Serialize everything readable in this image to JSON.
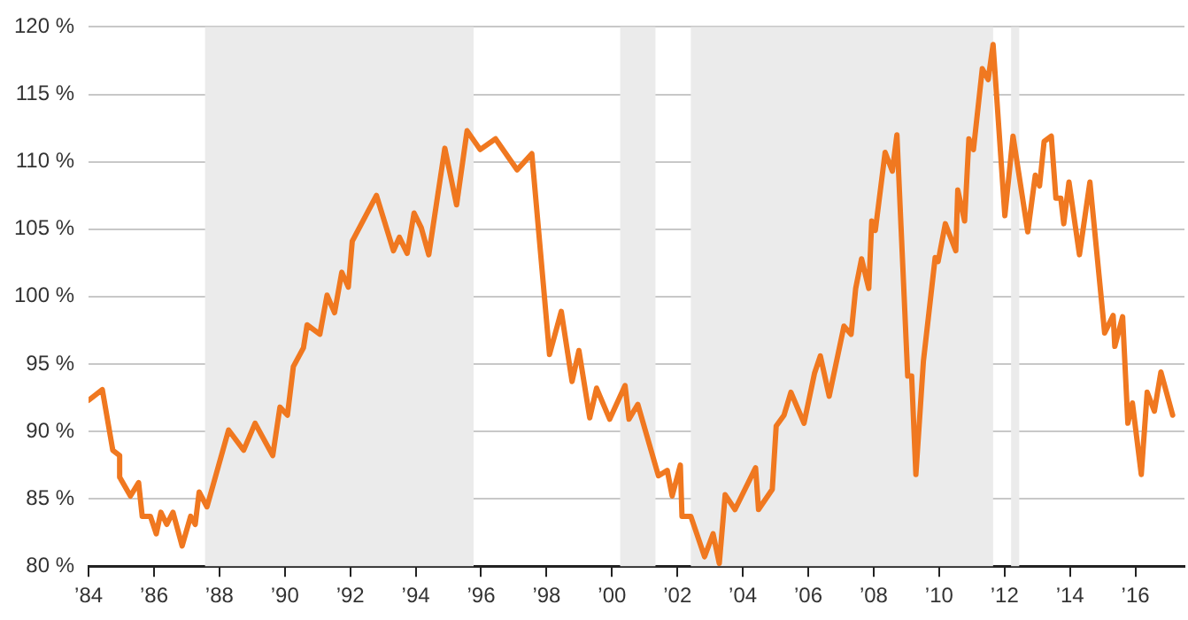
{
  "chart_data": {
    "type": "line",
    "x": [
      1984.0,
      1984.42,
      1984.74,
      1984.95,
      1984.95,
      1985.28,
      1985.53,
      1985.64,
      1985.89,
      1986.07,
      1986.21,
      1986.39,
      1986.58,
      1986.86,
      1987.12,
      1987.26,
      1987.38,
      1987.62,
      1988.28,
      1988.74,
      1989.09,
      1989.63,
      1989.85,
      1990.08,
      1990.26,
      1990.57,
      1990.68,
      1991.07,
      1991.29,
      1991.52,
      1991.74,
      1991.94,
      1992.06,
      1992.8,
      1993.32,
      1993.5,
      1993.74,
      1993.95,
      1994.17,
      1994.4,
      1994.89,
      1995.25,
      1995.57,
      1995.97,
      1996.44,
      1997.1,
      1997.55,
      1998.09,
      1998.45,
      1998.78,
      1998.99,
      1999.32,
      1999.53,
      1999.93,
      2000.4,
      2000.52,
      2000.79,
      2001.42,
      2001.69,
      2001.84,
      2002.09,
      2002.14,
      2002.41,
      2002.83,
      2003.09,
      2003.28,
      2003.46,
      2003.76,
      2004.39,
      2004.48,
      2004.9,
      2005.02,
      2005.26,
      2005.47,
      2005.87,
      2006.19,
      2006.37,
      2006.64,
      2007.09,
      2007.31,
      2007.45,
      2007.63,
      2007.85,
      2007.94,
      2008.05,
      2008.35,
      2008.57,
      2008.71,
      2009.04,
      2009.16,
      2009.29,
      2009.52,
      2009.88,
      2009.97,
      2010.19,
      2010.51,
      2010.57,
      2010.78,
      2010.91,
      2011.05,
      2011.32,
      2011.5,
      2011.65,
      2012.01,
      2012.26,
      2012.71,
      2012.94,
      2013.07,
      2013.21,
      2013.43,
      2013.57,
      2013.72,
      2013.81,
      2013.97,
      2014.29,
      2014.61,
      2015.06,
      2015.32,
      2015.37,
      2015.61,
      2015.77,
      2015.91,
      2016.18,
      2016.36,
      2016.58,
      2016.78,
      2017.14
    ],
    "series": [
      {
        "color": "#f07820",
        "values": [
          92.3,
          93.1,
          88.6,
          88.2,
          86.6,
          85.2,
          86.2,
          83.7,
          83.7,
          82.4,
          84.0,
          83.1,
          84.0,
          81.5,
          83.7,
          83.1,
          85.5,
          84.4,
          90.1,
          88.6,
          90.6,
          88.2,
          91.8,
          91.2,
          94.8,
          96.2,
          97.9,
          97.2,
          100.1,
          98.8,
          101.8,
          100.7,
          104.1,
          107.5,
          103.4,
          104.4,
          103.2,
          106.2,
          105.1,
          103.1,
          111.0,
          106.8,
          112.3,
          110.9,
          111.7,
          109.4,
          110.6,
          95.7,
          98.9,
          93.7,
          96.0,
          91.0,
          93.2,
          90.9,
          93.4,
          90.9,
          92.0,
          86.7,
          87.1,
          85.2,
          87.5,
          83.7,
          83.7,
          80.7,
          82.4,
          80.2,
          85.3,
          84.2,
          87.3,
          84.2,
          85.7,
          90.4,
          91.2,
          92.9,
          90.6,
          94.3,
          95.6,
          92.6,
          97.8,
          97.2,
          100.6,
          102.8,
          100.6,
          105.6,
          104.9,
          110.7,
          109.3,
          112.0,
          94.1,
          94.1,
          86.8,
          95.2,
          102.9,
          102.6,
          105.4,
          103.4,
          107.9,
          105.6,
          111.7,
          110.9,
          116.9,
          116.1,
          118.7,
          106.0,
          111.9,
          104.8,
          109.0,
          108.2,
          111.5,
          111.9,
          107.3,
          107.3,
          105.4,
          108.5,
          103.1,
          108.5,
          97.3,
          98.6,
          96.3,
          98.5,
          90.6,
          92.1,
          86.8,
          92.9,
          91.5,
          94.4,
          91.2
        ]
      }
    ],
    "xlim": [
      1984,
      2017.5
    ],
    "xticks": [
      {
        "value": 1984,
        "label": "’84"
      },
      {
        "value": 1986,
        "label": "’86"
      },
      {
        "value": 1988,
        "label": "’88"
      },
      {
        "value": 1990,
        "label": "’90"
      },
      {
        "value": 1992,
        "label": "’92"
      },
      {
        "value": 1994,
        "label": "’94"
      },
      {
        "value": 1996,
        "label": "’96"
      },
      {
        "value": 1998,
        "label": "’98"
      },
      {
        "value": 2000,
        "label": "’00"
      },
      {
        "value": 2002,
        "label": "’02"
      },
      {
        "value": 2004,
        "label": "’04"
      },
      {
        "value": 2006,
        "label": "’06"
      },
      {
        "value": 2008,
        "label": "’08"
      },
      {
        "value": 2010,
        "label": "’10"
      },
      {
        "value": 2012,
        "label": "’12"
      },
      {
        "value": 2014,
        "label": "’14"
      },
      {
        "value": 2016,
        "label": "’16"
      }
    ],
    "ylim": [
      80,
      120
    ],
    "yticks": [
      {
        "value": 80,
        "label": "80 %"
      },
      {
        "value": 85,
        "label": "85 %"
      },
      {
        "value": 90,
        "label": "90 %"
      },
      {
        "value": 95,
        "label": "95 %"
      },
      {
        "value": 100,
        "label": "100 %"
      },
      {
        "value": 105,
        "label": "105 %"
      },
      {
        "value": 110,
        "label": "110 %"
      },
      {
        "value": 115,
        "label": "115 %"
      },
      {
        "value": 120,
        "label": "120 %"
      }
    ],
    "bands": [
      {
        "axis": "x",
        "from": 1987.56,
        "to": 1995.77,
        "color": "#ebebeb"
      },
      {
        "axis": "x",
        "from": 2000.25,
        "to": 2001.33,
        "color": "#ebebeb"
      },
      {
        "axis": "x",
        "from": 2002.41,
        "to": 2011.65,
        "color": "#ebebeb"
      },
      {
        "axis": "x",
        "from": 2012.2,
        "to": 2012.45,
        "color": "#ebebeb"
      }
    ],
    "grid": "y",
    "legend": false,
    "marker": "none",
    "line_style": "solid"
  }
}
